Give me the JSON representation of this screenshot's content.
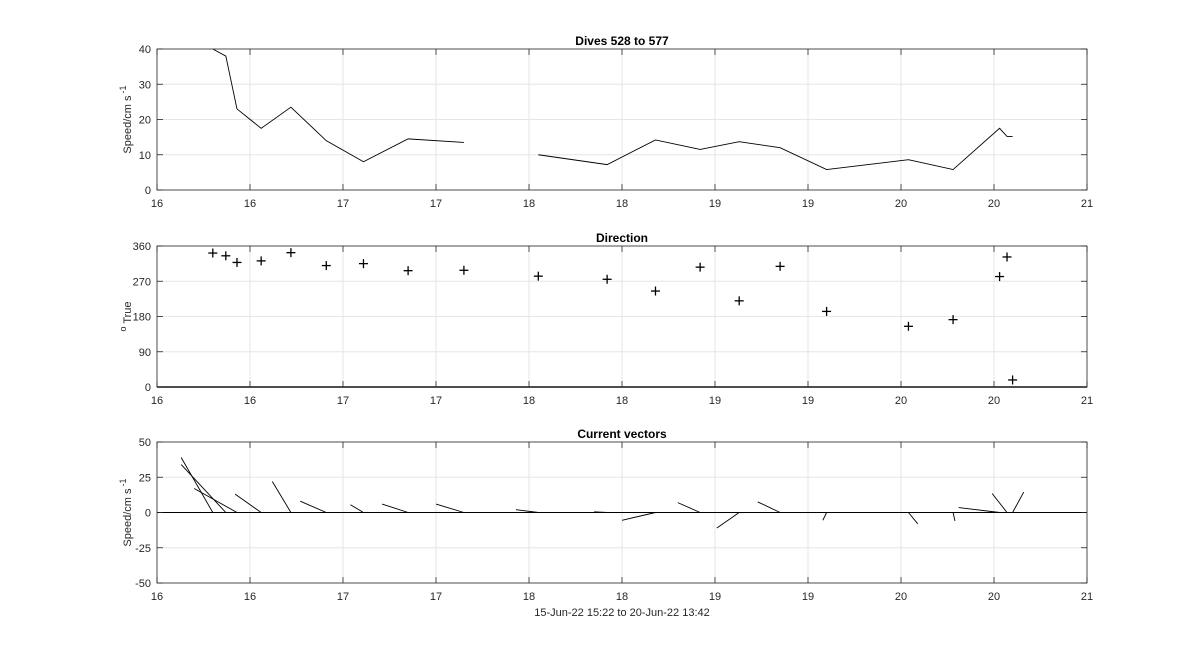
{
  "chart_data": [
    {
      "type": "line",
      "title": "Dives 528 to 577",
      "ylabel": "Speed/cm s",
      "ylabel_exponent": "-1",
      "xlim": [
        16,
        21
      ],
      "ylim": [
        0,
        40
      ],
      "xticks": [
        16,
        16.5,
        17,
        17.5,
        18,
        18.5,
        19,
        19.5,
        20,
        20.5,
        21
      ],
      "xtick_labels": [
        "16",
        "16",
        "17",
        "17",
        "18",
        "18",
        "19",
        "19",
        "20",
        "20",
        "21"
      ],
      "yticks": [
        0,
        10,
        20,
        30,
        40
      ],
      "ytick_labels": [
        "0",
        "10",
        "20",
        "30",
        "40"
      ],
      "grid": true,
      "segments": [
        {
          "x": [
            16.3,
            16.37,
            16.43,
            16.56,
            16.72,
            16.91,
            17.11,
            17.35,
            17.65
          ],
          "y": [
            40,
            38,
            23,
            17.5,
            23.5,
            14,
            8,
            14.5,
            13.5
          ]
        },
        {
          "x": [
            18.05,
            18.42,
            18.68,
            18.92,
            19.13,
            19.35,
            19.6,
            20.04,
            20.28,
            20.53,
            20.57,
            20.6
          ],
          "y": [
            10,
            7.2,
            14.2,
            11.5,
            13.7,
            12,
            5.8,
            8.6,
            5.8,
            17.5,
            15.2,
            15.2
          ]
        }
      ]
    },
    {
      "type": "scatter",
      "title": "Direction",
      "ylabel": "o True",
      "xlim": [
        16,
        21
      ],
      "ylim": [
        0,
        360
      ],
      "xticks": [
        16,
        16.5,
        17,
        17.5,
        18,
        18.5,
        19,
        19.5,
        20,
        20.5,
        21
      ],
      "xtick_labels": [
        "16",
        "16",
        "17",
        "17",
        "18",
        "18",
        "19",
        "19",
        "20",
        "20",
        "21"
      ],
      "yticks": [
        0,
        90,
        180,
        270,
        360
      ],
      "ytick_labels": [
        "0",
        "90",
        "180",
        "270",
        "360"
      ],
      "grid": true,
      "marker": "+",
      "x": [
        16.3,
        16.37,
        16.43,
        16.56,
        16.72,
        16.91,
        17.11,
        17.35,
        17.65,
        18.05,
        18.42,
        18.68,
        18.92,
        19.13,
        19.35,
        19.6,
        20.04,
        20.28,
        20.53,
        20.57,
        20.6
      ],
      "y": [
        342,
        335,
        318,
        322,
        343,
        310,
        315,
        297,
        298,
        283,
        275,
        245,
        306,
        220,
        308,
        193,
        155,
        172,
        282,
        332,
        18
      ]
    },
    {
      "type": "line",
      "title": "Current vectors",
      "ylabel": "Speed/cm s",
      "ylabel_exponent": "-1",
      "xlabel": "15-Jun-22 15:22 to 20-Jun-22 13:42",
      "xlim": [
        16,
        21
      ],
      "ylim": [
        -50,
        50
      ],
      "xticks": [
        16,
        16.5,
        17,
        17.5,
        18,
        18.5,
        19,
        19.5,
        20,
        20.5,
        21
      ],
      "xtick_labels": [
        "16",
        "16",
        "17",
        "17",
        "18",
        "18",
        "19",
        "19",
        "20",
        "20",
        "21"
      ],
      "yticks": [
        -50,
        -25,
        0,
        25,
        50
      ],
      "ytick_labels": [
        "-50",
        "-25",
        "0",
        "25",
        "50"
      ],
      "grid": true,
      "vectors": [
        {
          "x": [
            16.3,
            16.13
          ],
          "y": [
            0,
            39
          ]
        },
        {
          "x": [
            16.37,
            16.13
          ],
          "y": [
            0,
            34
          ]
        },
        {
          "x": [
            16.43,
            16.2
          ],
          "y": [
            0,
            17
          ]
        },
        {
          "x": [
            16.56,
            16.42
          ],
          "y": [
            0,
            13
          ]
        },
        {
          "x": [
            16.72,
            16.62
          ],
          "y": [
            0,
            22
          ]
        },
        {
          "x": [
            16.91,
            16.77
          ],
          "y": [
            0,
            8
          ]
        },
        {
          "x": [
            17.11,
            17.04
          ],
          "y": [
            0,
            5.5
          ]
        },
        {
          "x": [
            17.35,
            17.21
          ],
          "y": [
            0,
            6
          ]
        },
        {
          "x": [
            17.65,
            17.5
          ],
          "y": [
            0,
            6
          ]
        },
        {
          "x": [
            18.05,
            17.93
          ],
          "y": [
            0,
            2
          ]
        },
        {
          "x": [
            18.42,
            18.35
          ],
          "y": [
            0,
            0.5
          ]
        },
        {
          "x": [
            18.68,
            18.5
          ],
          "y": [
            0,
            -5.5
          ]
        },
        {
          "x": [
            18.92,
            18.8
          ],
          "y": [
            0,
            7
          ]
        },
        {
          "x": [
            19.13,
            19.01
          ],
          "y": [
            0,
            -11
          ]
        },
        {
          "x": [
            19.35,
            19.23
          ],
          "y": [
            0,
            7.5
          ]
        },
        {
          "x": [
            19.6,
            19.58
          ],
          "y": [
            0,
            -5.5
          ]
        },
        {
          "x": [
            20.04,
            20.09
          ],
          "y": [
            0,
            -8
          ]
        },
        {
          "x": [
            20.28,
            20.29
          ],
          "y": [
            0,
            -6
          ]
        },
        {
          "x": [
            20.53,
            20.31
          ],
          "y": [
            0,
            3.5
          ]
        },
        {
          "x": [
            20.57,
            20.49
          ],
          "y": [
            0,
            13.5
          ]
        },
        {
          "x": [
            20.6,
            20.66
          ],
          "y": [
            0,
            14.5
          ]
        }
      ]
    }
  ]
}
